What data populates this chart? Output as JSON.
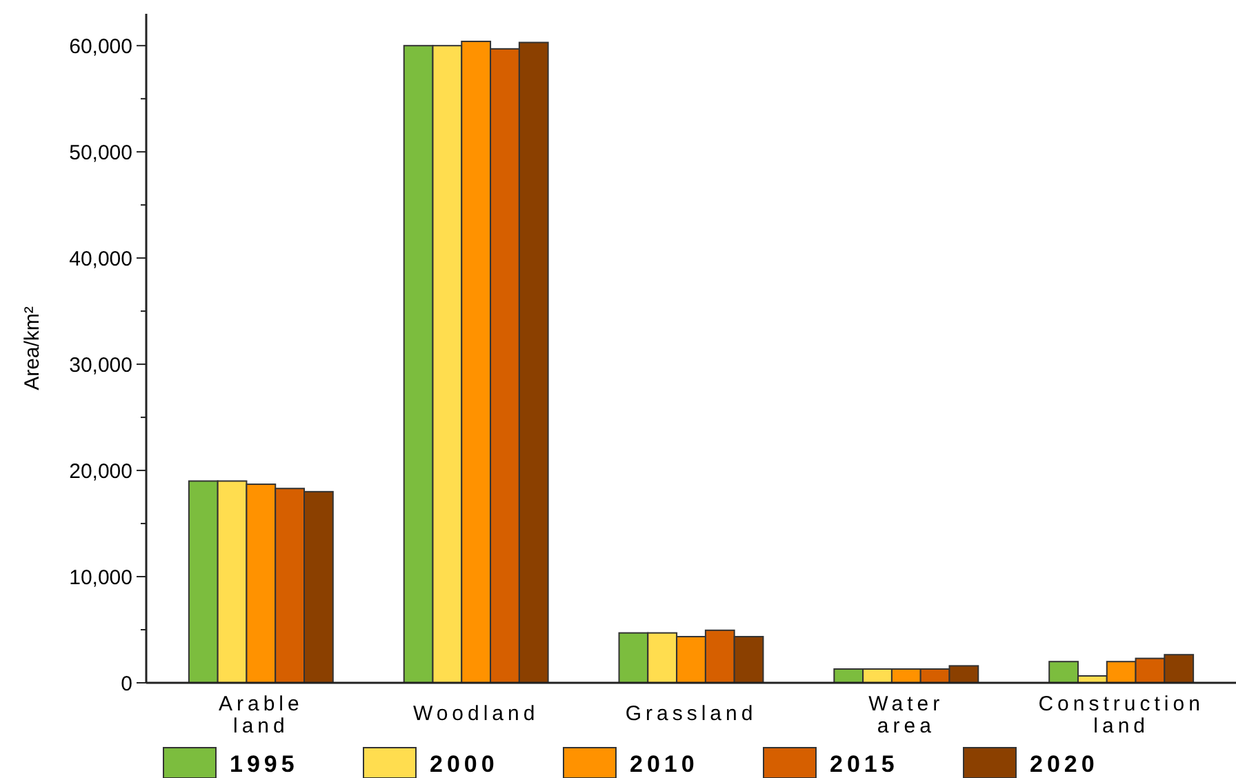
{
  "chart_data": {
    "type": "bar",
    "ylabel": "Area/km²",
    "categories": [
      "Arable\nland",
      "Woodland",
      "Grassland",
      "Water\narea",
      "Construction\nland"
    ],
    "series": [
      {
        "name": "1995",
        "color": "#7cbd3e",
        "values": [
          19000,
          60000,
          4700,
          1300,
          2000
        ]
      },
      {
        "name": "2000",
        "color": "#ffdd4f",
        "values": [
          19000,
          60000,
          4700,
          1300,
          650
        ]
      },
      {
        "name": "2010",
        "color": "#ff9200",
        "values": [
          18700,
          60400,
          4350,
          1300,
          2000
        ]
      },
      {
        "name": "2015",
        "color": "#d65f00",
        "values": [
          18300,
          59700,
          4950,
          1300,
          2300
        ]
      },
      {
        "name": "2020",
        "color": "#8b4000",
        "values": [
          18000,
          60300,
          4350,
          1600,
          2650
        ]
      }
    ],
    "ylim": [
      0,
      63000
    ],
    "yticks": [
      0,
      {
        "value": 5000,
        "label": null
      },
      "10,000",
      {
        "value": 15000,
        "label": null
      },
      {
        "value": 20000,
        "label": "20,000"
      },
      {
        "value": 25000,
        "label": null
      },
      {
        "value": 30000,
        "label": "30,000"
      },
      {
        "value": 35000,
        "label": null
      },
      {
        "value": 40000,
        "label": "40,000"
      },
      {
        "value": 45000,
        "label": null
      },
      {
        "value": 50000,
        "label": "50,000"
      },
      {
        "value": 55000,
        "label": null
      },
      {
        "value": 60000,
        "label": "60,000"
      }
    ],
    "grid": false,
    "legend": "bottom"
  }
}
